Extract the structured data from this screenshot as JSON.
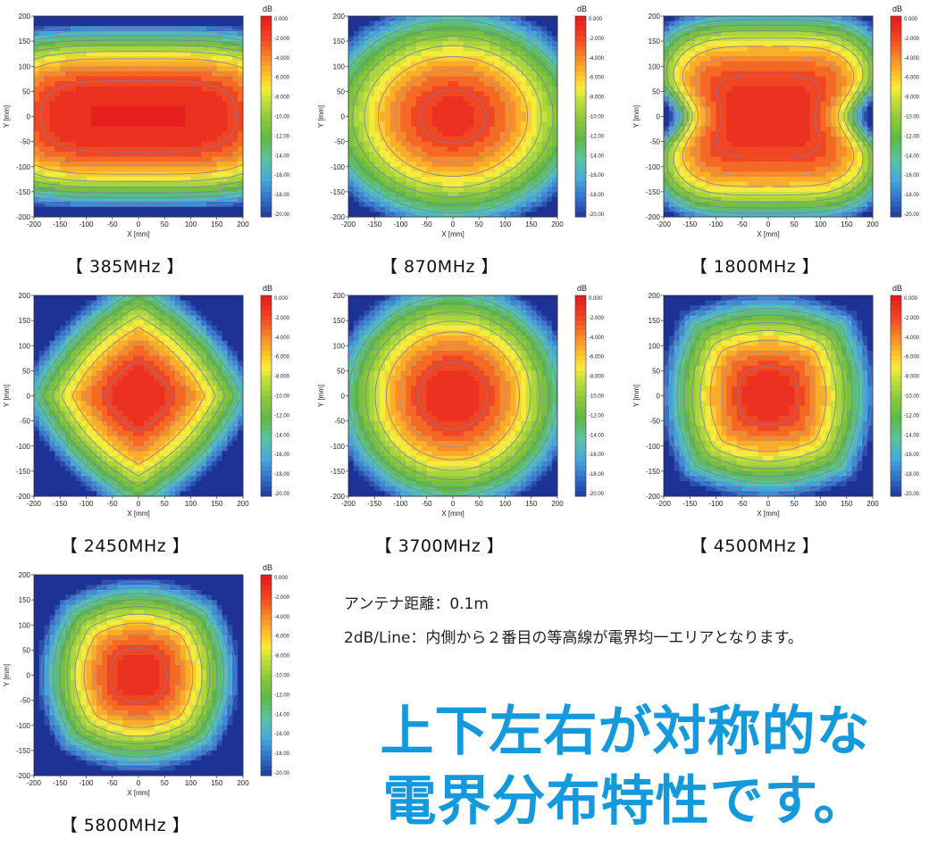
{
  "colorbar": {
    "unit": "dB",
    "ticks": [
      "0.000",
      "-2.000",
      "-4.000",
      "-6.000",
      "-8.000",
      "-10.00",
      "-12.00",
      "-14.00",
      "-16.00",
      "-18.00",
      "-20.00"
    ],
    "range": [
      -20,
      0
    ]
  },
  "notes": {
    "line1": "アンテナ距離：0.1m",
    "line2": "2dB/Line：内側から２番目の等高線が電界均一エリアとなります。"
  },
  "headline": {
    "line1": "上下左右が対称的な",
    "line2": "電界分布特性です。"
  },
  "chart_data": [
    {
      "type": "heatmap",
      "caption": "【 385MHz 】",
      "xlabel": "X [mm]",
      "ylabel": "Y [mm]",
      "xlim": [
        -200,
        200
      ],
      "ylim": [
        -200,
        200
      ],
      "xticks": [
        "-200",
        "-150",
        "-100",
        "-50",
        "0",
        "50",
        "100",
        "150",
        "200"
      ],
      "yticks": [
        "200",
        "150",
        "100",
        "50",
        "0",
        "-50",
        "-100",
        "-150",
        "-200"
      ],
      "field_db": {
        "center": -0.5,
        "decay_x": 0.12,
        "decay_y": 0.0008,
        "pattern": "wide"
      }
    },
    {
      "type": "heatmap",
      "caption": "【 870MHz 】",
      "xlabel": "X [mm]",
      "ylabel": "Y [mm]",
      "xlim": [
        -200,
        200
      ],
      "ylim": [
        -200,
        200
      ],
      "xticks": [
        "-200",
        "-150",
        "-100",
        "-50",
        "0",
        "50",
        "100",
        "150",
        "200"
      ],
      "yticks": [
        "200",
        "150",
        "100",
        "50",
        "0",
        "-50",
        "-100",
        "-150",
        "-200"
      ],
      "field_db": {
        "center": -1.5,
        "pattern": "oval"
      }
    },
    {
      "type": "heatmap",
      "caption": "【 1800MHz 】",
      "xlabel": "X [mm]",
      "ylabel": "Y [mm]",
      "xlim": [
        -200,
        200
      ],
      "ylim": [
        -200,
        200
      ],
      "xticks": [
        "-200",
        "-150",
        "-100",
        "-50",
        "0",
        "50",
        "100",
        "150",
        "200"
      ],
      "yticks": [
        "200",
        "150",
        "100",
        "50",
        "0",
        "-50",
        "-100",
        "-150",
        "-200"
      ],
      "field_db": {
        "center": -1.0,
        "pattern": "hourglass"
      }
    },
    {
      "type": "heatmap",
      "caption": "【 2450MHz 】",
      "xlabel": "X [mm]",
      "ylabel": "Y [mm]",
      "xlim": [
        -200,
        200
      ],
      "ylim": [
        -200,
        200
      ],
      "xticks": [
        "-200",
        "-150",
        "-100",
        "-50",
        "0",
        "50",
        "100",
        "150",
        "200"
      ],
      "yticks": [
        "200",
        "150",
        "100",
        "50",
        "0",
        "-50",
        "-100",
        "-150",
        "-200"
      ],
      "field_db": {
        "center": -0.5,
        "pattern": "diamond"
      }
    },
    {
      "type": "heatmap",
      "caption": "【 3700MHz 】",
      "xlabel": "X [mm]",
      "ylabel": "Y [mm]",
      "xlim": [
        -200,
        200
      ],
      "ylim": [
        -200,
        200
      ],
      "xticks": [
        "-200",
        "-150",
        "-100",
        "-50",
        "0",
        "50",
        "100",
        "150",
        "200"
      ],
      "yticks": [
        "200",
        "150",
        "100",
        "50",
        "0",
        "-50",
        "-100",
        "-150",
        "-200"
      ],
      "field_db": {
        "center": -0.5,
        "pattern": "round"
      }
    },
    {
      "type": "heatmap",
      "caption": "【 4500MHz 】",
      "xlabel": "X [mm]",
      "ylabel": "Y [mm]",
      "xlim": [
        -200,
        200
      ],
      "ylim": [
        -200,
        200
      ],
      "xticks": [
        "-200",
        "-150",
        "-100",
        "-50",
        "0",
        "50",
        "100",
        "150",
        "200"
      ],
      "yticks": [
        "200",
        "150",
        "100",
        "50",
        "0",
        "-50",
        "-100",
        "-150",
        "-200"
      ],
      "field_db": {
        "center": -0.5,
        "pattern": "round-tight"
      }
    },
    {
      "type": "heatmap",
      "caption": "【 5800MHz 】",
      "xlabel": "X [mm]",
      "ylabel": "Y [mm]",
      "xlim": [
        -200,
        200
      ],
      "ylim": [
        -200,
        200
      ],
      "xticks": [
        "-200",
        "-150",
        "-100",
        "-50",
        "0",
        "50",
        "100",
        "150",
        "200"
      ],
      "yticks": [
        "200",
        "150",
        "100",
        "50",
        "0",
        "-50",
        "-100",
        "-150",
        "-200"
      ],
      "field_db": {
        "center": -0.5,
        "pattern": "tight"
      }
    }
  ]
}
